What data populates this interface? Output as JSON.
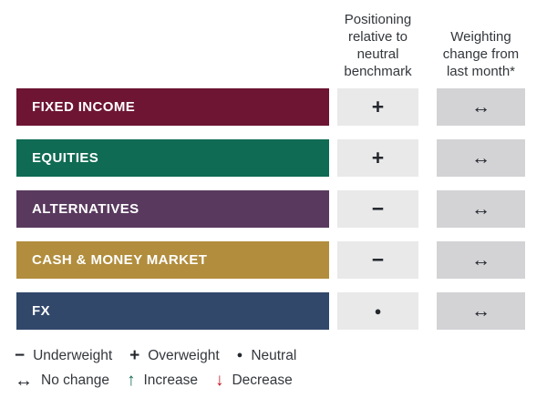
{
  "chart_data": {
    "type": "table",
    "title": "",
    "columns": [
      "Positioning relative to neutral benchmark",
      "Weighting change from last month*"
    ],
    "rows": [
      {
        "category": "FIXED INCOME",
        "positioning": "+",
        "weighting_change": "↔"
      },
      {
        "category": "EQUITIES",
        "positioning": "+",
        "weighting_change": "↔"
      },
      {
        "category": "ALTERNATIVES",
        "positioning": "−",
        "weighting_change": "↔"
      },
      {
        "category": "CASH & MONEY MARKET",
        "positioning": "−",
        "weighting_change": "↔"
      },
      {
        "category": "FX",
        "positioning": "●",
        "weighting_change": "↔"
      }
    ],
    "legend": [
      "− Underweight",
      "+ Overweight",
      "● Neutral",
      "↔ No change",
      "↑ Increase",
      "↓ Decrease"
    ]
  },
  "table": {
    "columns": [
      {
        "label": "Positioning relative to neutral benchmark"
      },
      {
        "label": "Weighting change from last month*"
      }
    ],
    "rows": [
      {
        "label": "FIXED INCOME",
        "color": "#6d1533",
        "positioning_symbol": "+",
        "change_symbol": "↔"
      },
      {
        "label": "EQUITIES",
        "color": "#0f6b53",
        "positioning_symbol": "+",
        "change_symbol": "↔"
      },
      {
        "label": "ALTERNATIVES",
        "color": "#593a5e",
        "positioning_symbol": "−",
        "change_symbol": "↔"
      },
      {
        "label": "CASH & MONEY MARKET",
        "color": "#b18d3d",
        "positioning_symbol": "−",
        "change_symbol": "↔"
      },
      {
        "label": "FX",
        "color": "#32486b",
        "positioning_symbol": "●",
        "change_symbol": "↔"
      }
    ]
  },
  "legend": {
    "underweight": {
      "symbol": "−",
      "label": "Underweight"
    },
    "overweight": {
      "symbol": "+",
      "label": "Overweight"
    },
    "neutral": {
      "symbol": "●",
      "label": "Neutral"
    },
    "no_change": {
      "symbol": "↔",
      "label": "No change"
    },
    "increase": {
      "symbol": "↑",
      "label": "Increase",
      "color": "#136a52"
    },
    "decrease": {
      "symbol": "↓",
      "label": "Decrease",
      "color": "#c41a28"
    }
  },
  "colors": {
    "positioning_cell_bg": "#e9e9e9",
    "change_cell_bg": "#d3d3d6",
    "text": "#33373c"
  }
}
